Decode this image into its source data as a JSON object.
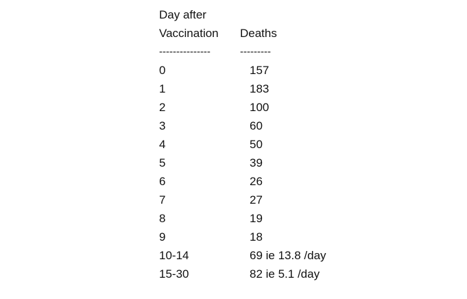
{
  "header": {
    "line1_col1": "Day after",
    "line2_col1": "Vaccination",
    "line2_col2": "Deaths",
    "sep_col1": "---------------",
    "sep_col2": "---------"
  },
  "rows": [
    {
      "day": "0",
      "deaths": "157"
    },
    {
      "day": "1",
      "deaths": "183"
    },
    {
      "day": "2",
      "deaths": "100"
    },
    {
      "day": "3",
      "deaths": "60"
    },
    {
      "day": "4",
      "deaths": "50"
    },
    {
      "day": "5",
      "deaths": "39"
    },
    {
      "day": "6",
      "deaths": "26"
    },
    {
      "day": "7",
      "deaths": "27"
    },
    {
      "day": "8",
      "deaths": "19"
    },
    {
      "day": "9",
      "deaths": "18"
    },
    {
      "day": "10-14",
      "deaths": "69 ie 13.8 /day"
    },
    {
      "day": "15-30",
      "deaths": "82 ie 5.1 /day"
    }
  ]
}
